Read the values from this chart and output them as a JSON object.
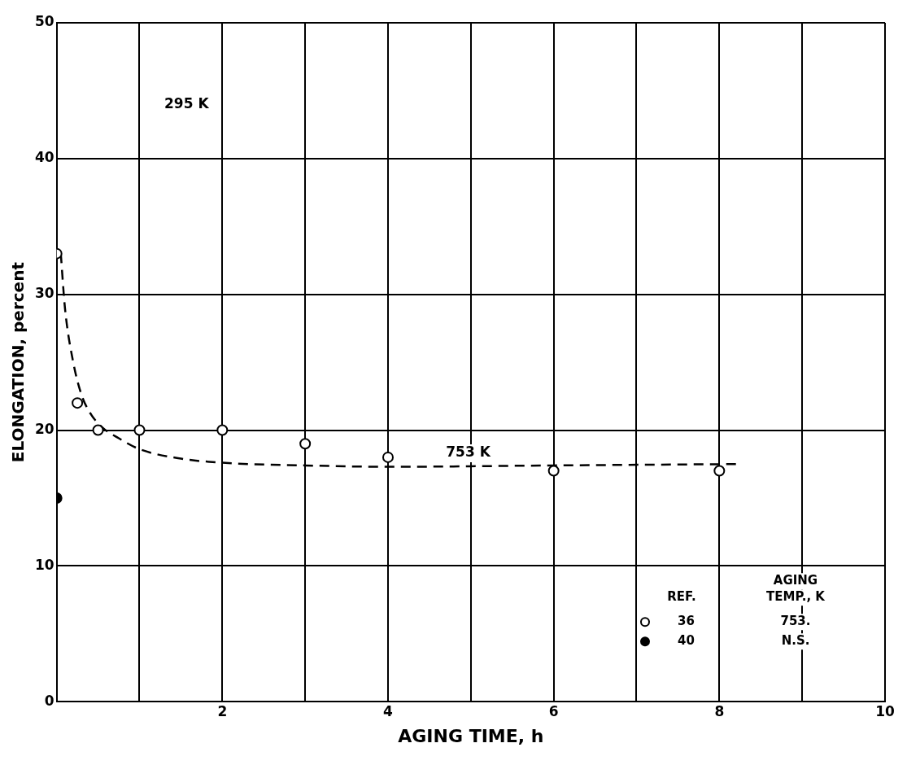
{
  "chart_data": {
    "type": "scatter",
    "xlabel": "AGING TIME, h",
    "ylabel": "ELONGATION, percent",
    "xlim": [
      0,
      10
    ],
    "ylim": [
      0,
      50
    ],
    "xticks": [
      {
        "value": 0,
        "label": null
      },
      {
        "value": 1,
        "label": null
      },
      2,
      {
        "value": 3,
        "label": null
      },
      4,
      {
        "value": 5,
        "label": null
      },
      6,
      {
        "value": 7,
        "label": null
      },
      8,
      {
        "value": 9,
        "label": null
      },
      10
    ],
    "yticks": [
      0,
      10,
      20,
      30,
      40,
      50
    ],
    "grid": true,
    "legend": "bottom right",
    "legend_title": "REF.",
    "marker": "circle",
    "series": [
      {
        "name": "36",
        "color": "#ffffff",
        "x": [
          0,
          0.25,
          0.5,
          1,
          2,
          3,
          4,
          6,
          8
        ],
        "values": [
          33,
          22,
          20,
          20,
          20,
          19,
          18,
          17,
          17
        ]
      },
      {
        "name": "40",
        "color": "#000000",
        "x": [
          0
        ],
        "values": [
          15
        ]
      },
      {
        "type": "line",
        "color": "#000000",
        "line_style": "dashed",
        "marker": "none",
        "x": [
          0.05,
          0.1,
          0.2,
          0.3,
          0.4,
          0.55,
          0.75,
          1,
          1.5,
          2,
          3,
          4,
          6,
          8.2
        ],
        "values": [
          33,
          29,
          25,
          22.6,
          21.3,
          20.2,
          19.4,
          18.6,
          17.9,
          17.6,
          17.4,
          17.3,
          17.4,
          17.5
        ]
      }
    ],
    "annotations": [
      "295 K",
      "753 K",
      "AGING TEMP., K",
      "753.",
      "N.S."
    ]
  }
}
